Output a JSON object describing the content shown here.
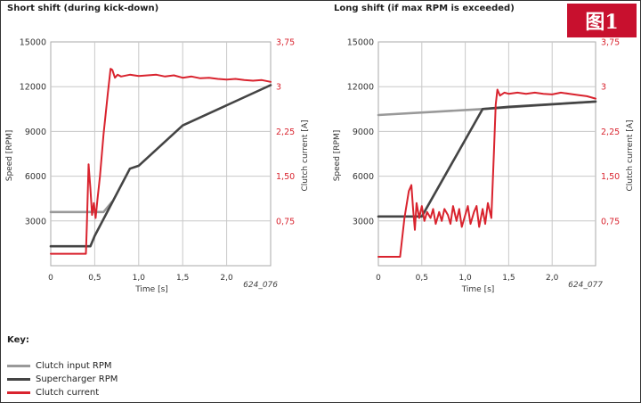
{
  "badge": "图1",
  "key": {
    "title": "Key:",
    "items": [
      {
        "label": "Clutch input RPM",
        "color": "#999999"
      },
      {
        "label": "Supercharger RPM",
        "color": "#444444"
      },
      {
        "label": "Clutch current",
        "color": "#d9232e"
      }
    ]
  },
  "chart_data": [
    {
      "type": "line",
      "title": "Short shift (during kick-down)",
      "xlabel": "Time [s]",
      "ylabel": "Speed [RPM]",
      "y2label": "Clutch current [A]",
      "figure_code": "624_076",
      "xlim": [
        0,
        2.5
      ],
      "ylim": [
        0,
        15000
      ],
      "y2lim": [
        0,
        3.75
      ],
      "xticks": [
        "0",
        "0,5",
        "1,0",
        "1,5",
        "2,0"
      ],
      "yticks": [
        "3000",
        "6000",
        "9000",
        "12000",
        "15000"
      ],
      "y2ticks": [
        "0,75",
        "1,50",
        "2,25",
        "3",
        "3,75"
      ],
      "grid": true,
      "series": [
        {
          "name": "Clutch input RPM",
          "axis": "left",
          "color": "#999999",
          "x": [
            0,
            0.6,
            0.7
          ],
          "y": [
            3600,
            3600,
            4300
          ]
        },
        {
          "name": "Supercharger RPM",
          "axis": "left",
          "color": "#444444",
          "x": [
            0,
            0.45,
            0.5,
            0.9,
            1.0,
            1.5,
            2.5
          ],
          "y": [
            1300,
            1300,
            2000,
            6500,
            6700,
            9400,
            12100
          ]
        },
        {
          "name": "Clutch current",
          "axis": "right",
          "color": "#d9232e",
          "x": [
            0,
            0.4,
            0.41,
            0.43,
            0.45,
            0.47,
            0.49,
            0.51,
            0.53,
            0.56,
            0.6,
            0.65,
            0.68,
            0.7,
            0.73,
            0.76,
            0.8,
            0.9,
            1.0,
            1.1,
            1.2,
            1.3,
            1.4,
            1.5,
            1.6,
            1.7,
            1.8,
            1.9,
            2.0,
            2.1,
            2.2,
            2.3,
            2.4,
            2.5
          ],
          "y": [
            0.2,
            0.2,
            0.65,
            1.7,
            1.3,
            0.85,
            1.05,
            0.8,
            1.1,
            1.5,
            2.2,
            2.9,
            3.3,
            3.28,
            3.15,
            3.2,
            3.17,
            3.2,
            3.18,
            3.19,
            3.2,
            3.17,
            3.19,
            3.15,
            3.17,
            3.14,
            3.15,
            3.13,
            3.12,
            3.13,
            3.11,
            3.1,
            3.11,
            3.08
          ]
        }
      ]
    },
    {
      "type": "line",
      "title": "Long shift (if max RPM is exceeded)",
      "xlabel": "Time [s]",
      "ylabel": "Speed [RPM]",
      "y2label": "Clutch current [A]",
      "figure_code": "624_077",
      "xlim": [
        0,
        2.5
      ],
      "ylim": [
        0,
        15000
      ],
      "y2lim": [
        0,
        3.75
      ],
      "xticks": [
        "0",
        "0,5",
        "1,0",
        "1,5",
        "2,0"
      ],
      "yticks": [
        "3000",
        "6000",
        "9000",
        "12000",
        "15000"
      ],
      "y2ticks": [
        "0,75",
        "1,50",
        "2,25",
        "3",
        "3,75"
      ],
      "grid": true,
      "series": [
        {
          "name": "Clutch input RPM",
          "axis": "left",
          "color": "#999999",
          "x": [
            0,
            1.2,
            2.5
          ],
          "y": [
            10100,
            10500,
            11000
          ]
        },
        {
          "name": "Supercharger RPM",
          "axis": "left",
          "color": "#444444",
          "x": [
            0,
            0.5,
            1.2,
            1.5,
            2.5
          ],
          "y": [
            3300,
            3300,
            10500,
            10650,
            11000
          ]
        },
        {
          "name": "Clutch current",
          "axis": "right",
          "color": "#d9232e",
          "x": [
            0,
            0.25,
            0.3,
            0.35,
            0.38,
            0.4,
            0.42,
            0.44,
            0.47,
            0.5,
            0.53,
            0.56,
            0.6,
            0.63,
            0.66,
            0.7,
            0.73,
            0.76,
            0.8,
            0.83,
            0.86,
            0.9,
            0.93,
            0.96,
            1.0,
            1.03,
            1.06,
            1.1,
            1.13,
            1.16,
            1.2,
            1.23,
            1.26,
            1.3,
            1.33,
            1.35,
            1.37,
            1.4,
            1.45,
            1.5,
            1.6,
            1.7,
            1.8,
            1.9,
            2.0,
            2.1,
            2.2,
            2.3,
            2.4,
            2.5
          ],
          "y": [
            0.15,
            0.15,
            0.8,
            1.25,
            1.35,
            0.95,
            0.6,
            1.05,
            0.8,
            1.0,
            0.75,
            0.9,
            0.8,
            0.95,
            0.7,
            0.9,
            0.75,
            0.95,
            0.85,
            0.7,
            1.0,
            0.75,
            0.95,
            0.65,
            0.85,
            1.0,
            0.7,
            0.9,
            1.0,
            0.65,
            0.95,
            0.7,
            1.05,
            0.8,
            1.9,
            2.7,
            2.95,
            2.85,
            2.9,
            2.88,
            2.9,
            2.88,
            2.9,
            2.88,
            2.87,
            2.9,
            2.88,
            2.86,
            2.84,
            2.8
          ]
        }
      ]
    }
  ]
}
